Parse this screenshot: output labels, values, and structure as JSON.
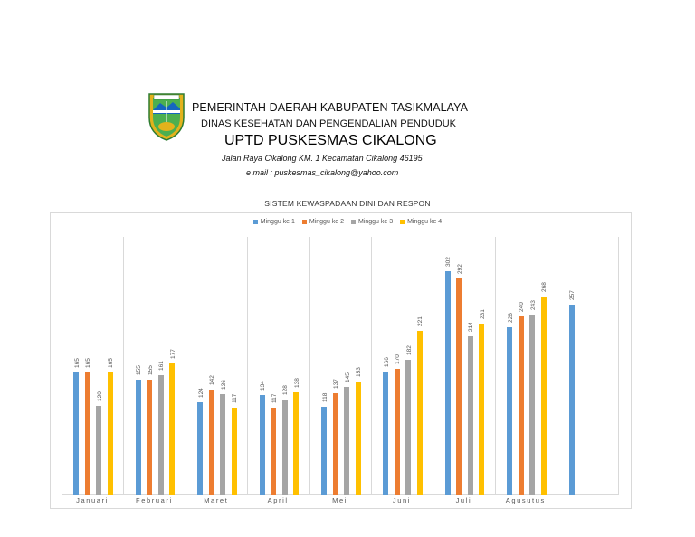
{
  "letterhead": {
    "line1": "PEMERINTAH DAERAH KABUPATEN TASIKMALAYA",
    "line2": "DINAS KESEHATAN DAN PENGENDALIAN PENDUDUK",
    "line3": "UPTD PUSKESMAS CIKALONG",
    "line4": "Jalan Raya Cikalong KM. 1 Kecamatan Cikalong 46195",
    "line5": "e mail  : puskesmas_cikalong@yahoo.com",
    "logo_banner": "KAB. TASIKMALAYA"
  },
  "colors": {
    "series1": "#5b9bd5",
    "series2": "#ed7d31",
    "series3": "#a5a5a5",
    "series4": "#ffc000",
    "grid": "#d9d9d9"
  },
  "chart_data": {
    "type": "bar",
    "title": "SISTEM KEWASPADAAN DINI DAN RESPON",
    "xlabel": "",
    "ylabel": "",
    "ylim": [
      0,
      348
    ],
    "grid": "vertical category separators",
    "legend_position": "top",
    "categories": [
      "Januari",
      "Februari",
      "Maret",
      "April",
      "Mei",
      "Juni",
      "Juli",
      "Agusutus",
      ""
    ],
    "series": [
      {
        "name": "Minggu ke 1",
        "values": [
          165,
          155,
          124,
          134,
          118,
          166,
          302,
          226,
          257
        ]
      },
      {
        "name": "Minggu ke 2",
        "values": [
          165,
          155,
          142,
          117,
          137,
          170,
          292,
          240,
          null
        ]
      },
      {
        "name": "Minggu ke 3",
        "values": [
          120,
          161,
          136,
          128,
          145,
          182,
          214,
          243,
          null
        ]
      },
      {
        "name": "Minggu ke 4",
        "values": [
          165,
          177,
          117,
          138,
          153,
          221,
          231,
          268,
          null
        ]
      }
    ]
  }
}
